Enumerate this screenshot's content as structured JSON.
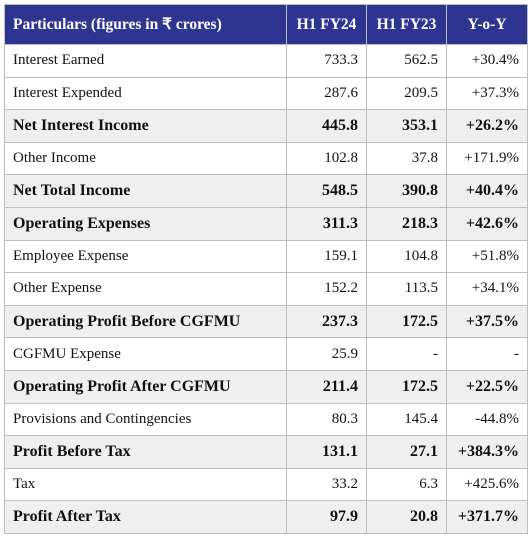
{
  "table": {
    "header": [
      "Particulars (figures in ₹ crores)",
      "H1 FY24",
      "H1 FY23",
      "Y-o-Y"
    ],
    "rows": [
      {
        "cells": [
          "Interest Earned",
          "733.3",
          "562.5",
          "+30.4%"
        ],
        "bold": false
      },
      {
        "cells": [
          "Interest Expended",
          "287.6",
          "209.5",
          "+37.3%"
        ],
        "bold": false
      },
      {
        "cells": [
          "Net Interest Income",
          "445.8",
          "353.1",
          "+26.2%"
        ],
        "bold": true
      },
      {
        "cells": [
          "Other Income",
          "102.8",
          "37.8",
          "+171.9%"
        ],
        "bold": false
      },
      {
        "cells": [
          "Net Total Income",
          "548.5",
          "390.8",
          "+40.4%"
        ],
        "bold": true
      },
      {
        "cells": [
          "Operating Expenses",
          "311.3",
          "218.3",
          "+42.6%"
        ],
        "bold": true
      },
      {
        "cells": [
          "Employee Expense",
          "159.1",
          "104.8",
          "+51.8%"
        ],
        "bold": false
      },
      {
        "cells": [
          "Other Expense",
          "152.2",
          "113.5",
          "+34.1%"
        ],
        "bold": false
      },
      {
        "cells": [
          "Operating Profit Before CGFMU",
          "237.3",
          "172.5",
          "+37.5%"
        ],
        "bold": true
      },
      {
        "cells": [
          "CGFMU Expense",
          "25.9",
          "-",
          "-"
        ],
        "bold": false
      },
      {
        "cells": [
          "Operating Profit After CGFMU",
          "211.4",
          "172.5",
          "+22.5%"
        ],
        "bold": true
      },
      {
        "cells": [
          "Provisions and Contingencies",
          "80.3",
          "145.4",
          "-44.8%"
        ],
        "bold": false
      },
      {
        "cells": [
          "Profit Before Tax",
          "131.1",
          "27.1",
          "+384.3%"
        ],
        "bold": true
      },
      {
        "cells": [
          "Tax",
          "33.2",
          "6.3",
          "+425.6%"
        ],
        "bold": false
      },
      {
        "cells": [
          "Profit After Tax",
          "97.9",
          "20.8",
          "+371.7%"
        ],
        "bold": true
      }
    ]
  }
}
